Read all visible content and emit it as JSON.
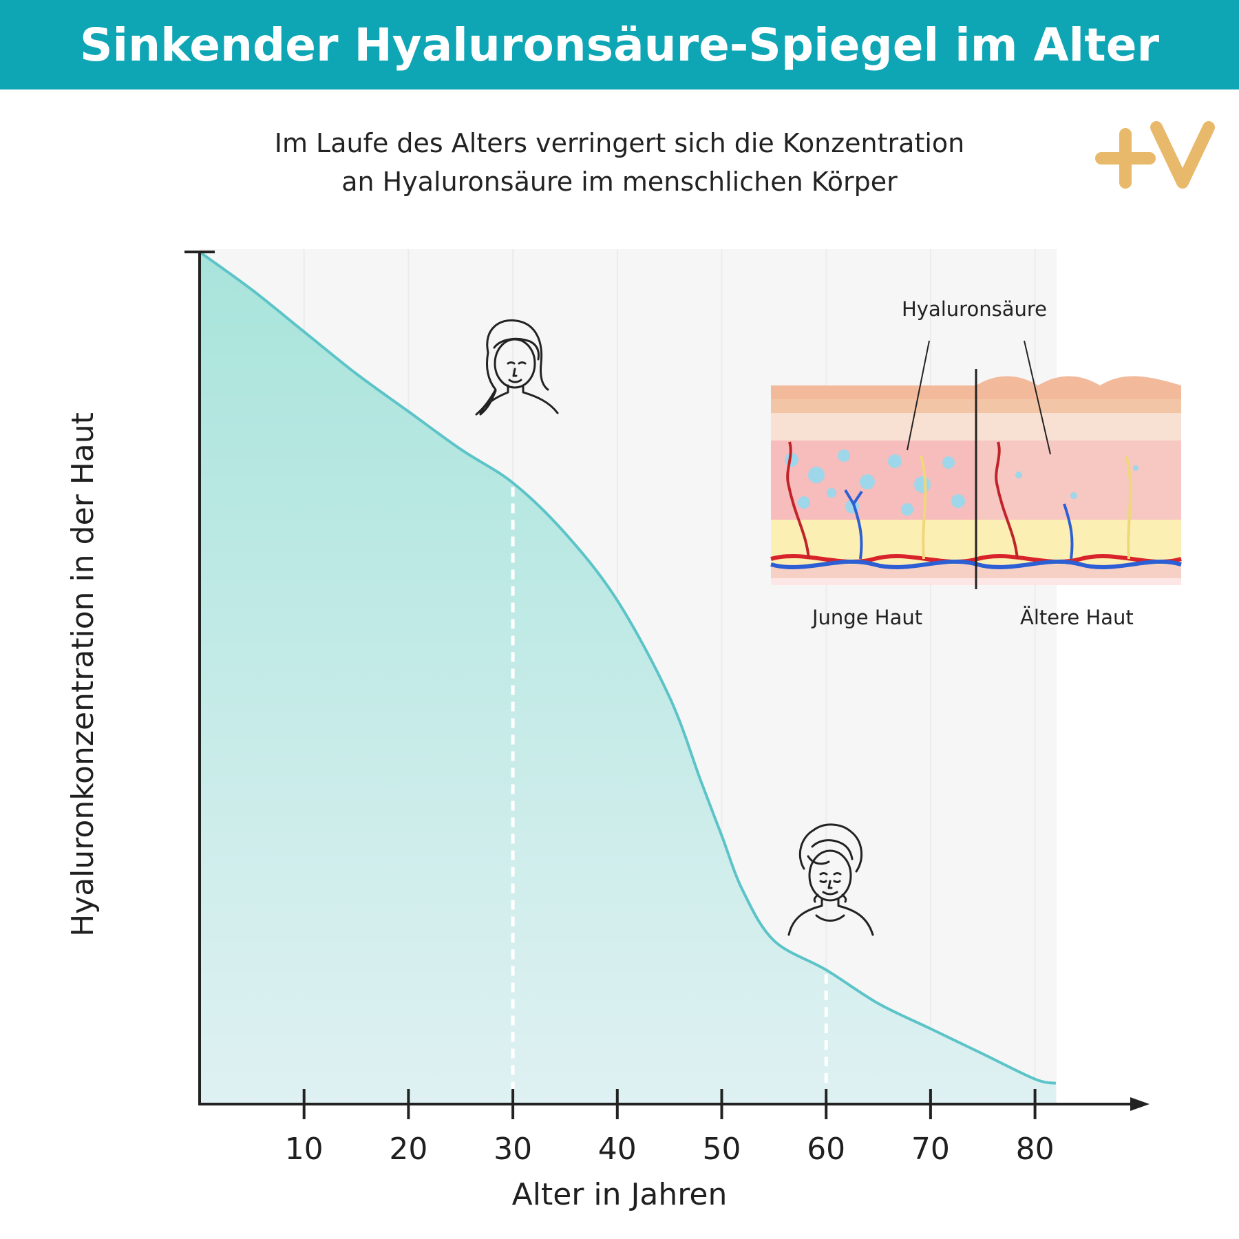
{
  "header": {
    "title": "Sinkender Hyaluronsäure-Spiegel im Alter"
  },
  "subtitle": {
    "line1": "Im Laufe des Alters verringert sich die Konzentration",
    "line2": "an Hyaluronsäure im menschlichen Körper"
  },
  "logo": {
    "text": "+V",
    "color": "#e8b96a"
  },
  "colors": {
    "accent": "#0ea5b5",
    "curve": "#5cc4c8",
    "fill": "#b7e6e0"
  },
  "inset": {
    "label_hyaluronic": "Hyaluronsäure",
    "label_young": "Junge Haut",
    "label_old": "Ältere Haut"
  },
  "chart_data": {
    "type": "area",
    "title": "Sinkender Hyaluronsäure-Spiegel im Alter",
    "xlabel": "Alter in Jahren",
    "ylabel": "Hyaluronkonzentration in der Haut",
    "x_ticks": [
      10,
      20,
      30,
      40,
      50,
      60,
      70,
      80
    ],
    "xlim": [
      0,
      90
    ],
    "ylim": [
      0,
      100
    ],
    "y_ticks_shown": false,
    "grid": true,
    "series": [
      {
        "x": [
          0,
          5,
          10,
          15,
          20,
          25,
          30,
          35,
          40,
          45,
          48,
          50,
          52,
          55,
          60,
          65,
          70,
          75,
          80,
          82
        ],
        "values": [
          100,
          95.5,
          90.5,
          85.5,
          81,
          76.5,
          72.5,
          66.5,
          58.5,
          47,
          37,
          30.5,
          24,
          18,
          14.5,
          10.5,
          7.5,
          4.5,
          1.5,
          1
        ]
      }
    ],
    "markers": [
      {
        "x": 30,
        "icon": "young-woman-icon"
      },
      {
        "x": 60,
        "icon": "elderly-woman-icon"
      }
    ]
  }
}
